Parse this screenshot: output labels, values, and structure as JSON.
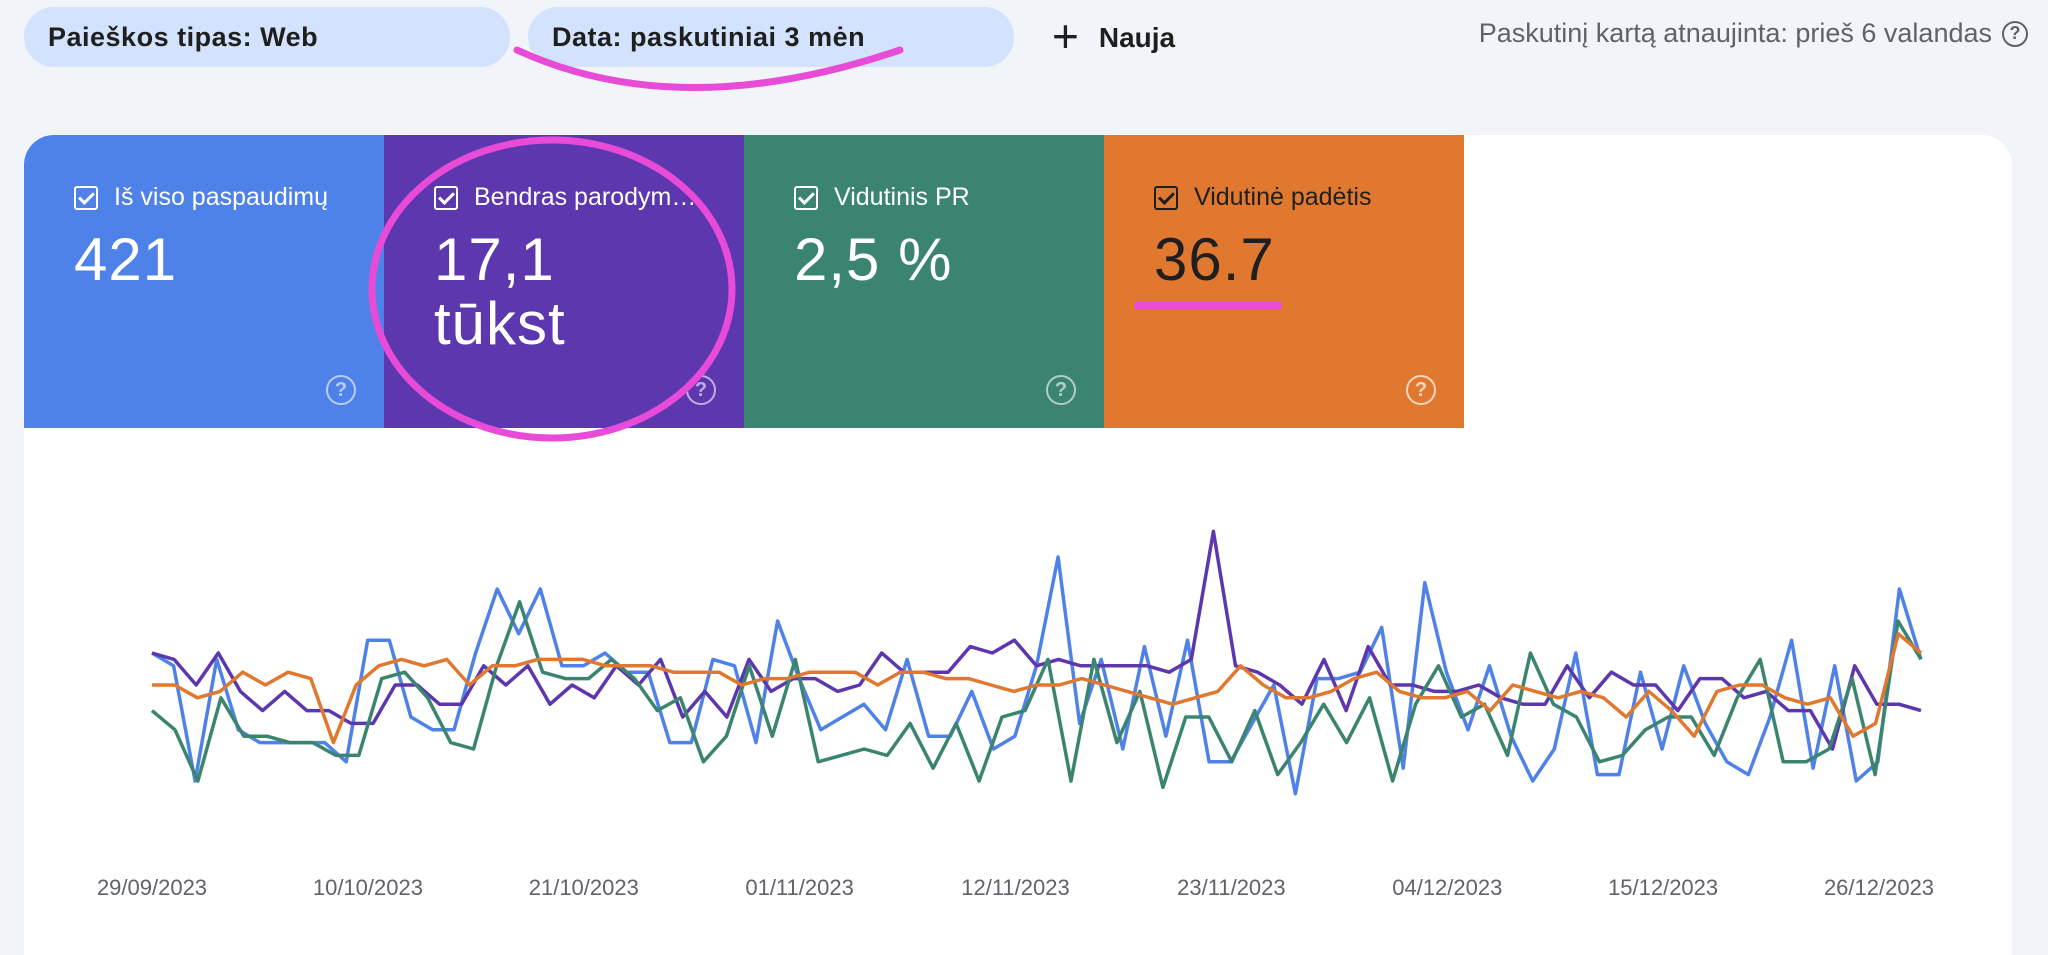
{
  "filters": {
    "search_type": "Paieškos tipas: Web",
    "date": "Data: paskutiniai 3 mėn",
    "new_label": "Nauja",
    "new_icon": "plus-icon"
  },
  "updated": {
    "text": "Paskutinį kartą atnaujinta: prieš 6 valandas",
    "help_icon": "help-icon"
  },
  "metrics": [
    {
      "id": "clicks",
      "label": "Iš viso paspaudimų",
      "value": "421",
      "checked": true,
      "color": "#4f82e8"
    },
    {
      "id": "impressions",
      "label": "Bendras parodym…",
      "value_line1": "17,1",
      "value_line2": "tūkst",
      "checked": true,
      "color": "#5d37ae"
    },
    {
      "id": "ctr",
      "label": "Vidutinis PR",
      "value": "2,5 %",
      "checked": true,
      "color": "#3b8570"
    },
    {
      "id": "position",
      "label": "Vidutinė padėtis",
      "value": "36.7",
      "checked": true,
      "color": "#e0782f"
    }
  ],
  "annotation_color": "#e84bd8",
  "chart_data": {
    "type": "line",
    "x_tick_labels": [
      "29/09/2023",
      "10/10/2023",
      "21/10/2023",
      "01/11/2023",
      "12/11/2023",
      "23/11/2023",
      "04/12/2023",
      "15/12/2023",
      "26/12/2023"
    ],
    "x_range": [
      "29/09/2023",
      "30/12/2023"
    ],
    "axes_visible": false,
    "series": [
      {
        "name": "Iš viso paspaudimų",
        "color": "#4f82e8",
        "values": [
          6.0,
          5.6,
          2.0,
          5.8,
          3.6,
          3.2,
          3.2,
          3.2,
          3.2,
          2.6,
          6.4,
          6.4,
          4.0,
          3.6,
          3.6,
          6.0,
          8.0,
          6.6,
          8.0,
          5.6,
          5.6,
          6.0,
          5.4,
          5.4,
          3.2,
          3.2,
          5.8,
          5.6,
          3.2,
          7.0,
          5.2,
          3.6,
          4.0,
          4.4,
          3.6,
          5.8,
          3.4,
          3.4,
          4.8,
          3.0,
          3.4,
          5.6,
          9.0,
          3.8,
          5.8,
          3.0,
          6.2,
          3.4,
          6.4,
          2.6,
          2.6,
          3.8,
          5.0,
          1.6,
          5.2,
          5.2,
          5.4,
          6.8,
          2.4,
          8.2,
          5.4,
          3.6,
          5.6,
          3.4,
          2.0,
          3.0,
          6.0,
          2.2,
          2.2,
          5.4,
          3.0,
          5.6,
          3.8,
          2.6,
          2.2,
          4.0,
          6.4,
          2.4,
          5.6,
          2.0,
          2.6,
          8.0,
          5.8
        ]
      },
      {
        "name": "Bendras parodymų",
        "color": "#5d37ae",
        "values": [
          6.0,
          5.8,
          5.0,
          6.0,
          4.8,
          4.2,
          4.8,
          4.2,
          4.2,
          3.8,
          3.8,
          5.0,
          5.0,
          4.4,
          4.4,
          5.6,
          5.0,
          5.6,
          4.4,
          5.0,
          4.6,
          5.6,
          5.0,
          5.8,
          4.0,
          4.8,
          4.0,
          5.8,
          4.8,
          5.2,
          5.2,
          4.8,
          5.0,
          6.0,
          5.4,
          5.4,
          5.4,
          6.2,
          6.0,
          6.4,
          5.6,
          5.8,
          5.6,
          5.6,
          5.6,
          5.6,
          5.4,
          5.8,
          9.8,
          5.6,
          5.4,
          5.0,
          4.4,
          5.8,
          4.2,
          6.2,
          5.0,
          5.0,
          4.8,
          4.8,
          5.0,
          4.6,
          4.4,
          4.4,
          5.6,
          4.6,
          5.4,
          5.0,
          5.0,
          4.2,
          5.2,
          5.2,
          4.6,
          4.8,
          4.2,
          4.2,
          3.0,
          5.6,
          4.4,
          4.4,
          4.2
        ]
      },
      {
        "name": "Vidutinis PR",
        "color": "#3b8570",
        "values": [
          4.2,
          3.6,
          2.0,
          4.6,
          3.4,
          3.4,
          3.2,
          3.2,
          2.8,
          2.8,
          5.2,
          5.4,
          4.6,
          3.2,
          3.0,
          5.6,
          7.6,
          5.4,
          5.2,
          5.2,
          5.8,
          5.2,
          4.2,
          4.6,
          2.6,
          3.4,
          5.6,
          3.4,
          5.8,
          2.6,
          2.8,
          3.0,
          2.8,
          3.8,
          2.4,
          3.8,
          2.0,
          4.0,
          4.2,
          5.8,
          2.0,
          5.8,
          3.2,
          4.8,
          1.8,
          4.0,
          4.0,
          2.6,
          4.2,
          2.2,
          3.2,
          4.4,
          3.2,
          4.6,
          2.0,
          4.4,
          5.6,
          4.0,
          4.4,
          2.8,
          6.0,
          4.4,
          4.0,
          2.6,
          2.8,
          3.6,
          4.0,
          4.0,
          2.8,
          4.6,
          5.8,
          2.6,
          2.6,
          3.0,
          5.2,
          2.2,
          7.0,
          5.8
        ]
      },
      {
        "name": "Vidutinė padėtis",
        "color": "#e0782f",
        "values": [
          5.0,
          5.0,
          4.6,
          4.8,
          5.4,
          5.0,
          5.4,
          5.2,
          3.2,
          5.0,
          5.6,
          5.8,
          5.6,
          5.8,
          5.0,
          5.6,
          5.6,
          5.8,
          5.8,
          5.8,
          5.6,
          5.6,
          5.6,
          5.4,
          5.4,
          5.4,
          5.0,
          5.2,
          5.2,
          5.4,
          5.4,
          5.4,
          5.0,
          5.4,
          5.4,
          5.2,
          5.2,
          5.0,
          4.8,
          5.0,
          5.0,
          5.2,
          5.0,
          4.8,
          4.6,
          4.4,
          4.6,
          4.8,
          5.6,
          5.0,
          4.6,
          4.6,
          4.8,
          5.2,
          5.4,
          4.8,
          4.6,
          4.6,
          4.8,
          4.2,
          5.0,
          4.8,
          4.6,
          4.8,
          4.6,
          4.0,
          4.8,
          4.2,
          3.4,
          4.8,
          5.0,
          5.0,
          4.6,
          4.4,
          4.6,
          3.4,
          3.8,
          6.6,
          6.0
        ]
      }
    ]
  }
}
